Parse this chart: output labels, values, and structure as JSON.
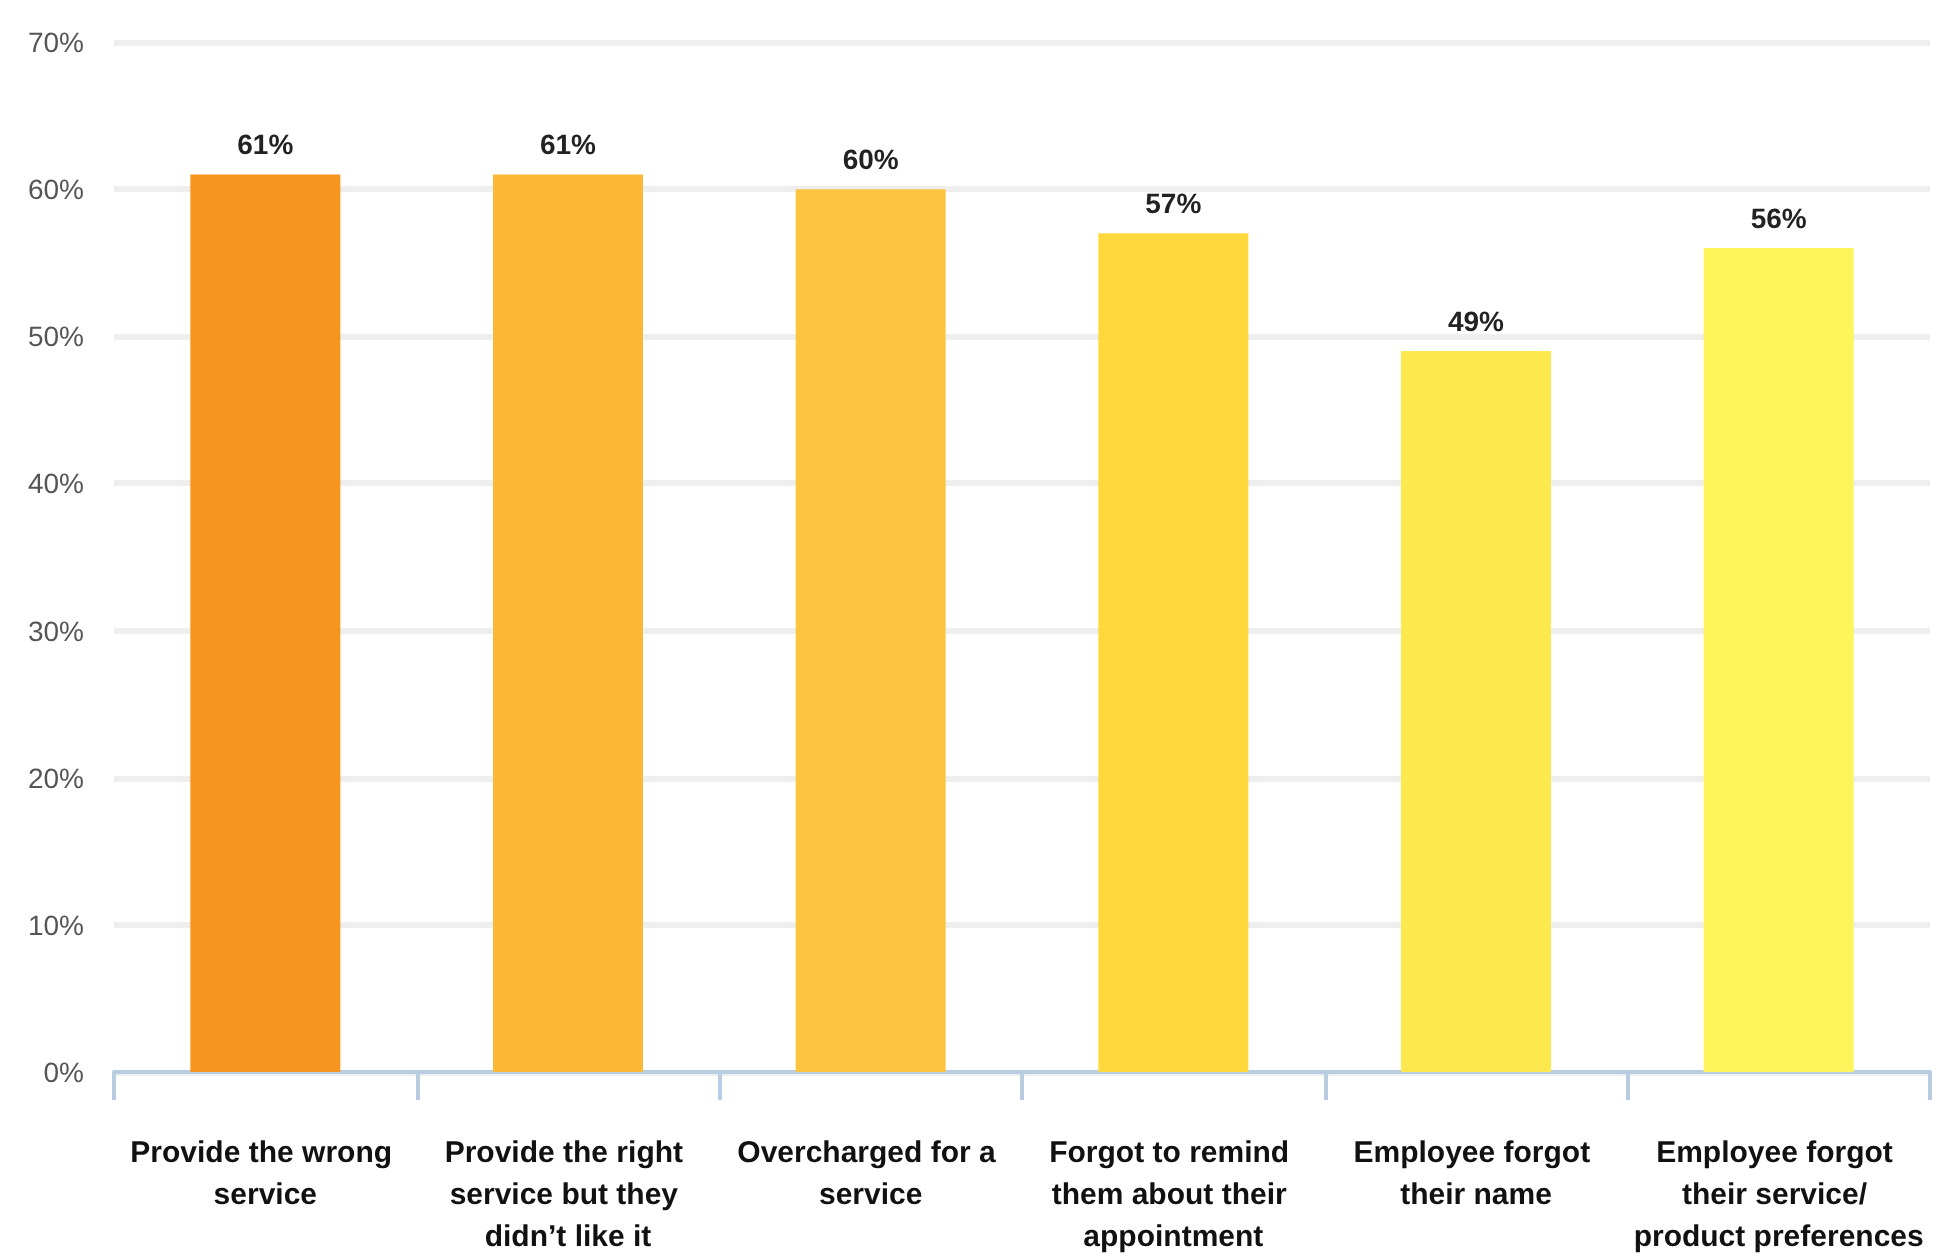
{
  "chart_data": {
    "type": "bar",
    "categories": [
      "Provide the wrong service",
      "Provide the right service but they didn’t like it",
      "Overcharged for a service",
      "Forgot to remind them about their appointment",
      "Employee forgot their name",
      "Employee forgot their service/ product preferences"
    ],
    "values": [
      61,
      61,
      60,
      57,
      49,
      56
    ],
    "colors": [
      "#f79521",
      "#fbb735",
      "#fcc440",
      "#fed83c",
      "#fee84f",
      "#fef55d"
    ],
    "value_labels": [
      "61%",
      "61%",
      "60%",
      "57%",
      "49%",
      "56%"
    ],
    "ylim": [
      0,
      70
    ],
    "yticks": [
      {
        "value": 0,
        "label": "0%"
      },
      {
        "value": 10,
        "label": "10%"
      },
      {
        "value": 20,
        "label": "20%"
      },
      {
        "value": 30,
        "label": "30%"
      },
      {
        "value": 40,
        "label": "40%"
      },
      {
        "value": 50,
        "label": "50%"
      },
      {
        "value": 60,
        "label": "60%"
      },
      {
        "value": 70,
        "label": "70%"
      }
    ],
    "grid": "y"
  }
}
